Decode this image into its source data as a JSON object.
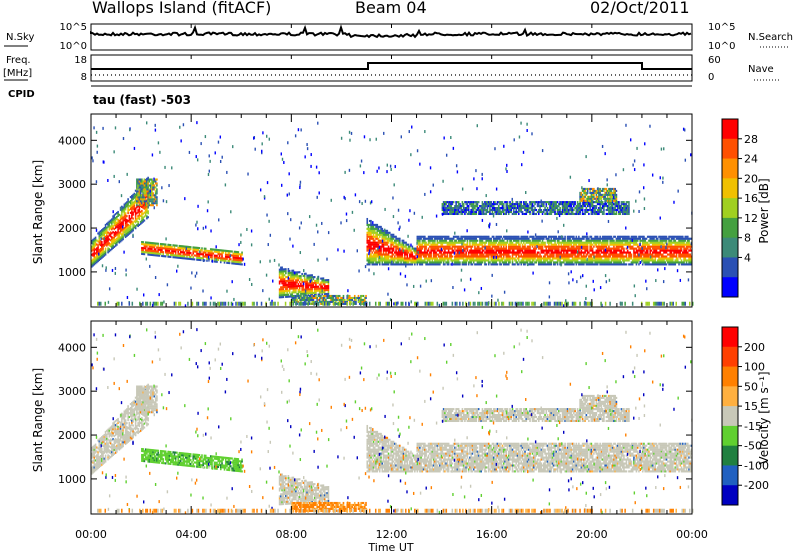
{
  "header": {
    "site": "Wallops Island (fitACF)",
    "beam": "Beam 04",
    "date": "02/Oct/2011",
    "tau_label": "tau (fast) -503"
  },
  "top_panels": {
    "nsky_label": "N.Sky",
    "nsky_ticks": [
      "10^5",
      "10^0"
    ],
    "nsearch_label": "N.Search",
    "nsearch_ticks": [
      "10^5",
      "10^0"
    ],
    "freq_label": "Freq.",
    "freq_unit": "[MHz]",
    "freq_ticks": [
      "18",
      "8"
    ],
    "nave_label": "Nave",
    "nave_ticks": [
      "60",
      "0"
    ],
    "cpid_label": "CPID"
  },
  "colors": {
    "power": [
      "#0000ff",
      "#2a50b4",
      "#3c8a78",
      "#44a040",
      "#a0d020",
      "#f0c000",
      "#ff9000",
      "#ff5000",
      "#ff0000"
    ],
    "velocity": [
      "#0000c0",
      "#2060c0",
      "#208040",
      "#60d030",
      "#c8c8b8",
      "#ffb040",
      "#ff8000",
      "#ff4000",
      "#ff0000"
    ]
  },
  "chart_data": [
    {
      "type": "heatmap",
      "name": "power",
      "ylabel": "Slant Range [km]",
      "yticks": [
        1000,
        2000,
        3000,
        4000
      ],
      "ylim": [
        200,
        4600
      ],
      "xticks": [
        "00:00",
        "04:00",
        "08:00",
        "12:00",
        "16:00",
        "20:00",
        "00:00"
      ],
      "xlim_hours": [
        0,
        24
      ],
      "colorbar_label": "Power [dB]",
      "colorbar_ticks": [
        "28",
        "24",
        "20",
        "16",
        "12",
        "8",
        "4"
      ],
      "colorbar_range": [
        0,
        32
      ]
    },
    {
      "type": "heatmap",
      "name": "velocity",
      "ylabel": "Slant Range [km]",
      "yticks": [
        1000,
        2000,
        3000,
        4000
      ],
      "ylim": [
        200,
        4600
      ],
      "xticks": [
        "00:00",
        "04:00",
        "08:00",
        "12:00",
        "16:00",
        "20:00",
        "00:00"
      ],
      "xlabel": "Time UT",
      "xlim_hours": [
        0,
        24
      ],
      "colorbar_label": "Velocity [m s⁻¹]",
      "colorbar_ticks": [
        "200",
        "100",
        "50",
        "15",
        "-15",
        "-50",
        "-100",
        "-200"
      ]
    }
  ]
}
